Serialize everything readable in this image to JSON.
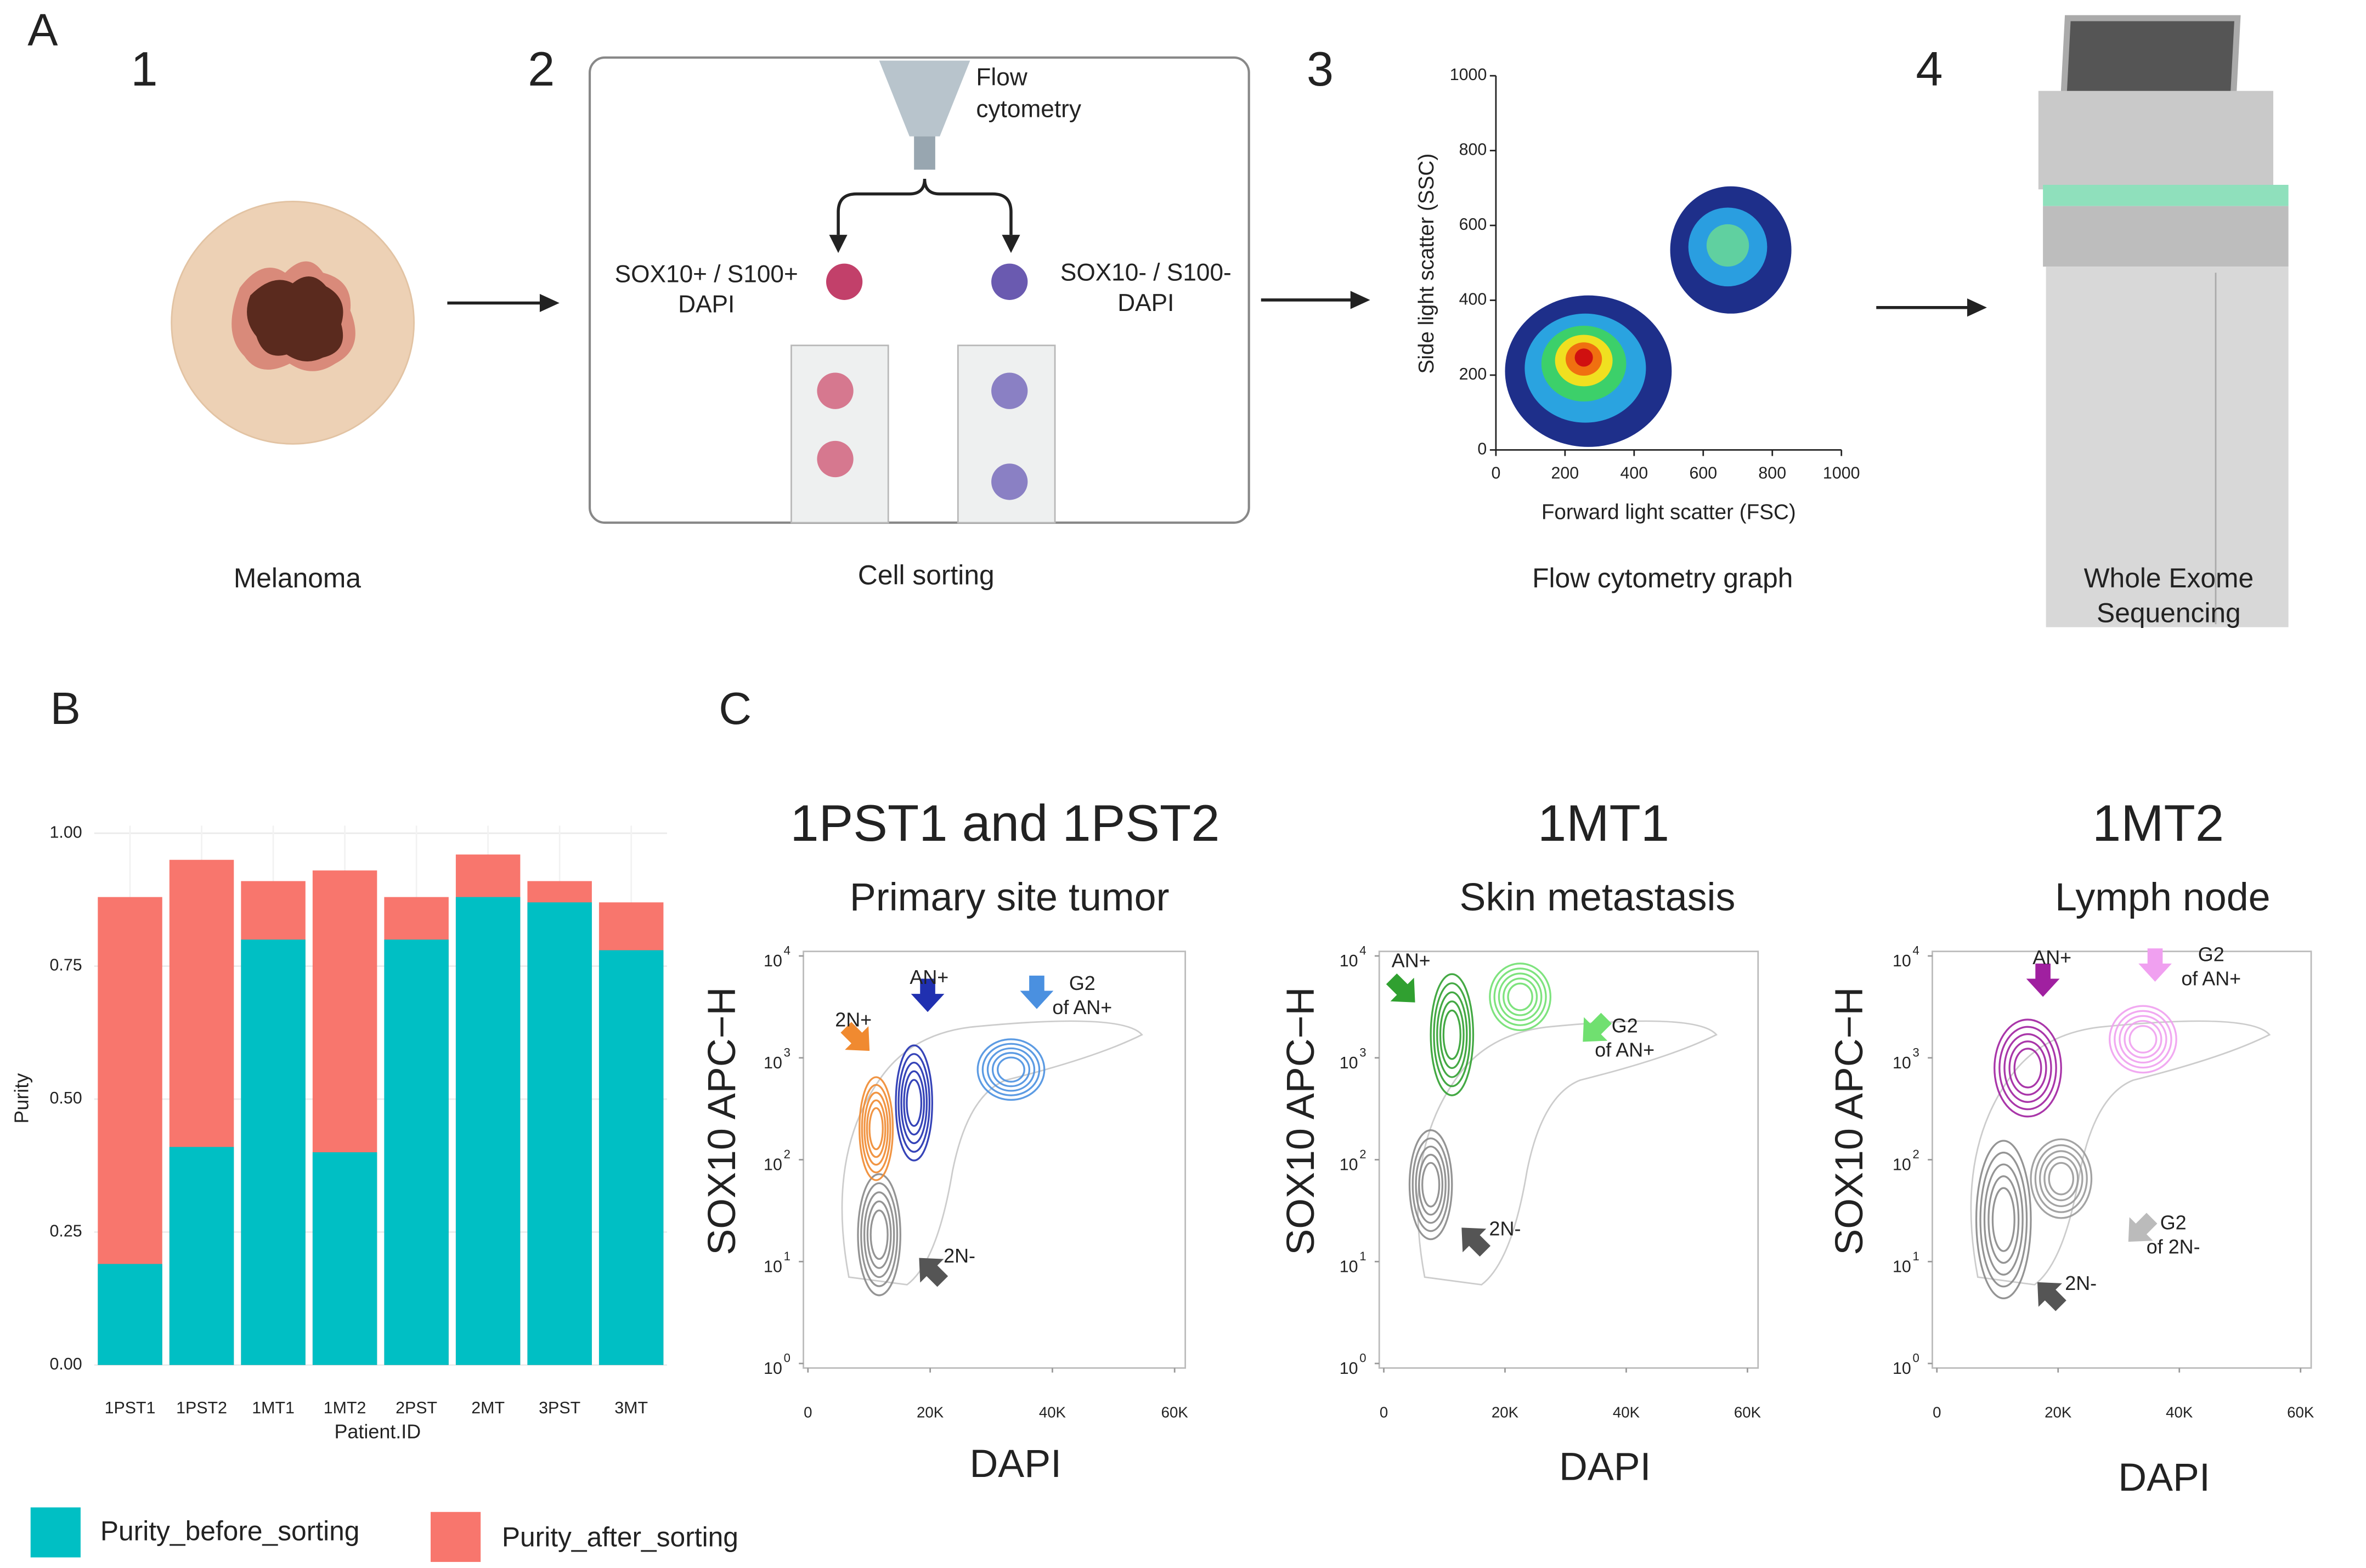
{
  "panel_labels": [
    "A",
    "B",
    "C"
  ],
  "steps": [
    {
      "number": "1",
      "caption": [
        "Melanoma"
      ]
    },
    {
      "number": "2",
      "caption": [
        "Cell sorting"
      ]
    },
    {
      "number": "3",
      "caption": [
        "Flow cytometry graph"
      ]
    },
    {
      "number": "4",
      "caption": [
        "Whole Exome",
        "Sequencing"
      ]
    }
  ],
  "sorting": {
    "device": [
      "Flow",
      "cytometry"
    ],
    "positive": [
      "SOX10+ / S100+",
      "DAPI"
    ],
    "negative": [
      "SOX10- / S100-",
      "DAPI"
    ]
  },
  "flow_graph": {
    "xlabel": "Forward light scatter (FSC)",
    "ylabel": "Side light scatter (SSC)",
    "xlim": [
      0,
      1000
    ],
    "ylim": [
      0,
      1000
    ],
    "xticks": [
      0,
      200,
      400,
      600,
      800,
      1000
    ],
    "yticks": [
      0,
      200,
      400,
      600,
      800,
      1000
    ]
  },
  "facs_plots": [
    {
      "title": "1PST1 and 1PST2",
      "subtitle": "Primary site tumor",
      "xlabel": "DAPI",
      "ylabel": "SOX10 APC−H",
      "annotations": [
        [
          "2N+"
        ],
        [
          "AN+"
        ],
        [
          "G2",
          "of AN+"
        ],
        [
          "2N-"
        ]
      ]
    },
    {
      "title": "1MT1",
      "subtitle": "Skin metastasis",
      "xlabel": "DAPI",
      "ylabel": "SOX10 APC−H",
      "annotations": [
        [
          "AN+"
        ],
        [
          "G2",
          "of AN+"
        ],
        [
          "2N-"
        ]
      ]
    },
    {
      "title": "1MT2",
      "subtitle": "Lymph node",
      "xlabel": "DAPI",
      "ylabel": "SOX10 APC−H",
      "annotations": [
        [
          "AN+"
        ],
        [
          "G2",
          "of AN+"
        ],
        [
          "G2",
          "of 2N-"
        ],
        [
          "2N-"
        ]
      ]
    }
  ],
  "facs_axes": {
    "xlim": [
      0,
      61000
    ],
    "ylim": [
      1,
      10000
    ],
    "log_y": true,
    "xticks": [
      0,
      {
        "value": 20000,
        "label": "20K"
      },
      {
        "value": 40000,
        "label": "40K"
      },
      {
        "value": 60000,
        "label": "60K"
      }
    ],
    "yticks": [
      {
        "value": 1,
        "label": "10",
        "exponent": "0"
      },
      {
        "value": 10,
        "label": "10",
        "exponent": "1"
      },
      {
        "value": 100,
        "label": "10",
        "exponent": "2"
      },
      {
        "value": 1000,
        "label": "10",
        "exponent": "3"
      },
      {
        "value": 10000,
        "label": "10",
        "exponent": "4"
      }
    ]
  },
  "chart_data": {
    "type": "bar",
    "barmode": "overlay",
    "xlabel": "Patient.ID",
    "ylabel": "Purity",
    "categories": [
      "1PST1",
      "1PST2",
      "1MT1",
      "1MT2",
      "2PST",
      "2MT",
      "3PST",
      "3MT"
    ],
    "series": [
      {
        "name": "Purity_before_sorting",
        "color": "#00BFC4",
        "values": [
          0.19,
          0.41,
          0.8,
          0.4,
          0.8,
          0.88,
          0.87,
          0.78
        ]
      },
      {
        "name": "Purity_after_sorting",
        "color": "#F8766D",
        "values": [
          0.88,
          0.95,
          0.91,
          0.93,
          0.88,
          0.96,
          0.91,
          0.87
        ]
      }
    ],
    "ylim": [
      0,
      1
    ],
    "yticks": [
      {
        "value": 0,
        "label": "0.00"
      },
      {
        "value": 0.25,
        "label": "0.25"
      },
      {
        "value": 0.5,
        "label": "0.50"
      },
      {
        "value": 0.75,
        "label": "0.75"
      },
      {
        "value": 1,
        "label": "1.00"
      }
    ],
    "grid": true,
    "legend": "bottom"
  }
}
